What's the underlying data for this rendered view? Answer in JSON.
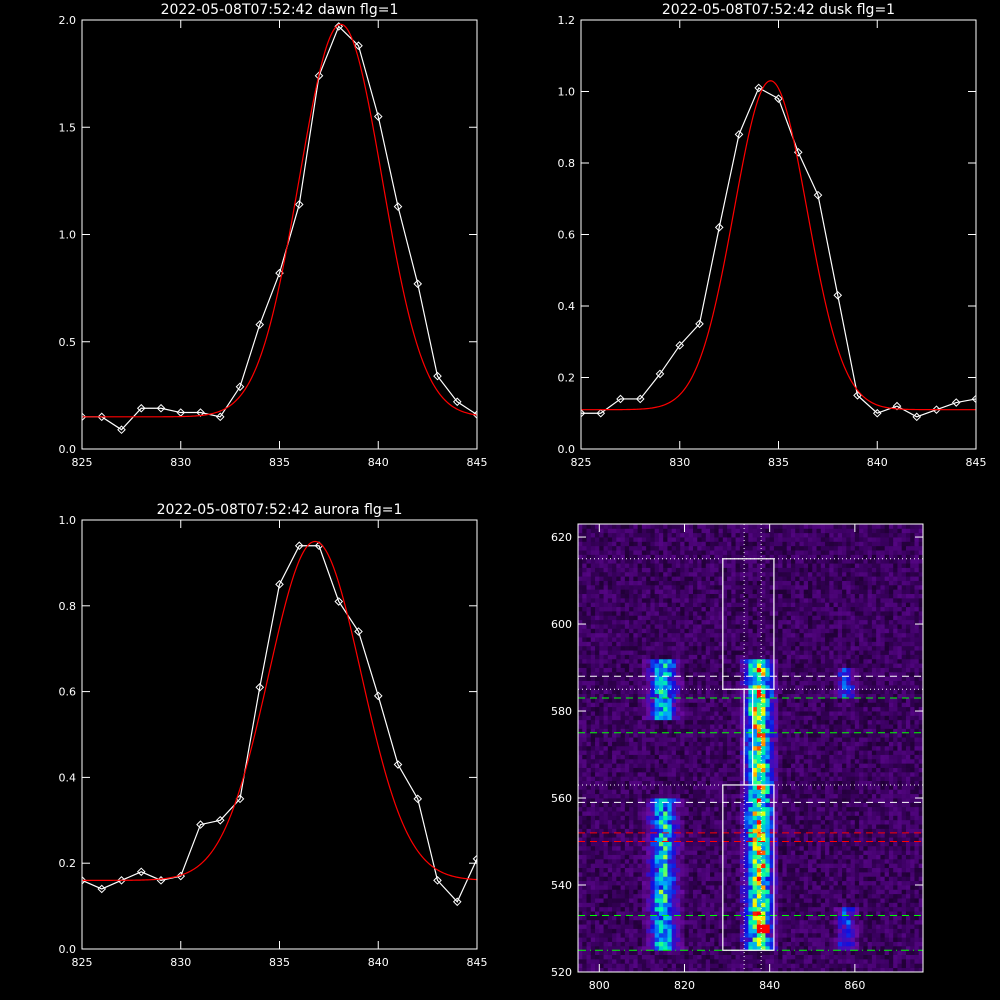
{
  "chart_data": [
    {
      "type": "line",
      "title": "2022-05-08T07:52:42 dawn flg=1",
      "xlim": [
        825,
        845
      ],
      "ylim": [
        0,
        2.0
      ],
      "xticks": [
        "825",
        "830",
        "835",
        "840",
        "845"
      ],
      "yticks": [
        "0.0",
        "0.5",
        "1.0",
        "1.5",
        "2.0"
      ],
      "series": [
        {
          "kind": "data",
          "color": "#ffffff",
          "x": [
            825,
            826,
            827,
            828,
            829,
            830,
            831,
            832,
            833,
            834,
            835,
            836,
            837,
            838,
            839,
            840,
            841,
            842,
            843,
            844,
            845
          ],
          "y": [
            0.15,
            0.15,
            0.09,
            0.19,
            0.19,
            0.17,
            0.17,
            0.15,
            0.29,
            0.58,
            0.82,
            1.14,
            1.74,
            1.97,
            1.88,
            1.55,
            1.13,
            0.77,
            0.34,
            0.22,
            0.16
          ]
        },
        {
          "kind": "fit",
          "color": "#ff0000",
          "base": 0.15,
          "amp": 1.83,
          "center": 838.1,
          "sigma": 2.1
        }
      ]
    },
    {
      "type": "line",
      "title": "2022-05-08T07:52:42 dusk flg=1",
      "xlim": [
        825,
        845
      ],
      "ylim": [
        0,
        1.2
      ],
      "xticks": [
        "825",
        "830",
        "835",
        "840",
        "845"
      ],
      "yticks": [
        "0.0",
        "0.2",
        "0.4",
        "0.6",
        "0.8",
        "1.0",
        "1.2"
      ],
      "series": [
        {
          "kind": "data",
          "color": "#ffffff",
          "x": [
            825,
            826,
            827,
            828,
            829,
            830,
            831,
            832,
            833,
            834,
            835,
            836,
            837,
            838,
            839,
            840,
            841,
            842,
            843,
            844,
            845
          ],
          "y": [
            0.1,
            0.1,
            0.14,
            0.14,
            0.21,
            0.29,
            0.35,
            0.62,
            0.88,
            1.01,
            0.98,
            0.83,
            0.71,
            0.43,
            0.15,
            0.1,
            0.12,
            0.09,
            0.11,
            0.13,
            0.14
          ]
        },
        {
          "kind": "fit",
          "color": "#ff0000",
          "base": 0.11,
          "amp": 0.92,
          "center": 834.6,
          "sigma": 1.85
        }
      ]
    },
    {
      "type": "line",
      "title": "2022-05-08T07:52:42 aurora flg=1",
      "xlim": [
        825,
        845
      ],
      "ylim": [
        0,
        1.0
      ],
      "xticks": [
        "825",
        "830",
        "835",
        "840",
        "845"
      ],
      "yticks": [
        "0.0",
        "0.2",
        "0.4",
        "0.6",
        "0.8",
        "1.0"
      ],
      "series": [
        {
          "kind": "data",
          "color": "#ffffff",
          "x": [
            825,
            826,
            827,
            828,
            829,
            830,
            831,
            832,
            833,
            834,
            835,
            836,
            837,
            838,
            839,
            840,
            841,
            842,
            843,
            844,
            845
          ],
          "y": [
            0.16,
            0.14,
            0.16,
            0.18,
            0.16,
            0.17,
            0.29,
            0.3,
            0.35,
            0.61,
            0.85,
            0.94,
            0.94,
            0.81,
            0.74,
            0.59,
            0.43,
            0.35,
            0.16,
            0.11,
            0.21
          ]
        },
        {
          "kind": "fit",
          "color": "#ff0000",
          "base": 0.16,
          "amp": 0.79,
          "center": 836.8,
          "sigma": 2.35
        }
      ]
    },
    {
      "type": "heatmap",
      "title": "",
      "xlim": [
        795,
        876
      ],
      "ylim": [
        520,
        623
      ],
      "xticks": [
        "800",
        "820",
        "840",
        "860"
      ],
      "yticks": [
        "520",
        "540",
        "560",
        "580",
        "600",
        "620"
      ],
      "colormap": [
        "#000000",
        "#3a0060",
        "#6a0aa0",
        "#1010e0",
        "#00a0ff",
        "#00ffa0",
        "#ffff00",
        "#ff0000"
      ],
      "bright_bands": [
        {
          "x_center": 815,
          "halfwidth": 2.2,
          "ranges": [
            [
              525,
              560
            ],
            [
              578,
              592
            ]
          ],
          "peak": 0.55
        },
        {
          "x_center": 837.5,
          "halfwidth": 2.2,
          "ranges": [
            [
              525,
              563
            ],
            [
              563,
              585
            ],
            [
              585,
              592
            ]
          ],
          "peak": 0.75
        },
        {
          "x_center": 858,
          "halfwidth": 1.5,
          "ranges": [
            [
              525,
              535
            ],
            [
              583,
              590
            ]
          ],
          "peak": 0.35
        }
      ],
      "peak_point": {
        "x": 838.5,
        "y": 530
      },
      "boxes": [
        {
          "x0": 829,
          "x1": 841,
          "y0": 585,
          "y1": 615,
          "color": "#ffffff"
        },
        {
          "x0": 829,
          "x1": 841,
          "y0": 525,
          "y1": 563,
          "color": "#ffffff"
        },
        {
          "x0": 834,
          "x1": 836,
          "y0": 563,
          "y1": 585,
          "color": "#ffffff"
        }
      ],
      "hlines": [
        {
          "y": 615,
          "color": "#ffffff",
          "style": "dotted"
        },
        {
          "y": 588,
          "color": "#ffffff",
          "style": "dashed"
        },
        {
          "y": 585,
          "color": "#ffffff",
          "style": "dotted"
        },
        {
          "y": 583,
          "color": "#00ff00",
          "style": "dashed"
        },
        {
          "y": 575,
          "color": "#00ff00",
          "style": "dashed"
        },
        {
          "y": 563,
          "color": "#ffffff",
          "style": "dotted"
        },
        {
          "y": 559,
          "color": "#ffffff",
          "style": "dashed"
        },
        {
          "y": 552,
          "color": "#ff0000",
          "style": "dashed"
        },
        {
          "y": 550,
          "color": "#ff0000",
          "style": "dashed"
        },
        {
          "y": 533,
          "color": "#00ff00",
          "style": "dashed"
        },
        {
          "y": 525,
          "color": "#00ff00",
          "style": "dashdot"
        }
      ],
      "vlines": [
        {
          "x": 834,
          "color": "#ffffff",
          "style": "dotted"
        },
        {
          "x": 838,
          "color": "#ffffff",
          "style": "dotted"
        }
      ]
    }
  ]
}
